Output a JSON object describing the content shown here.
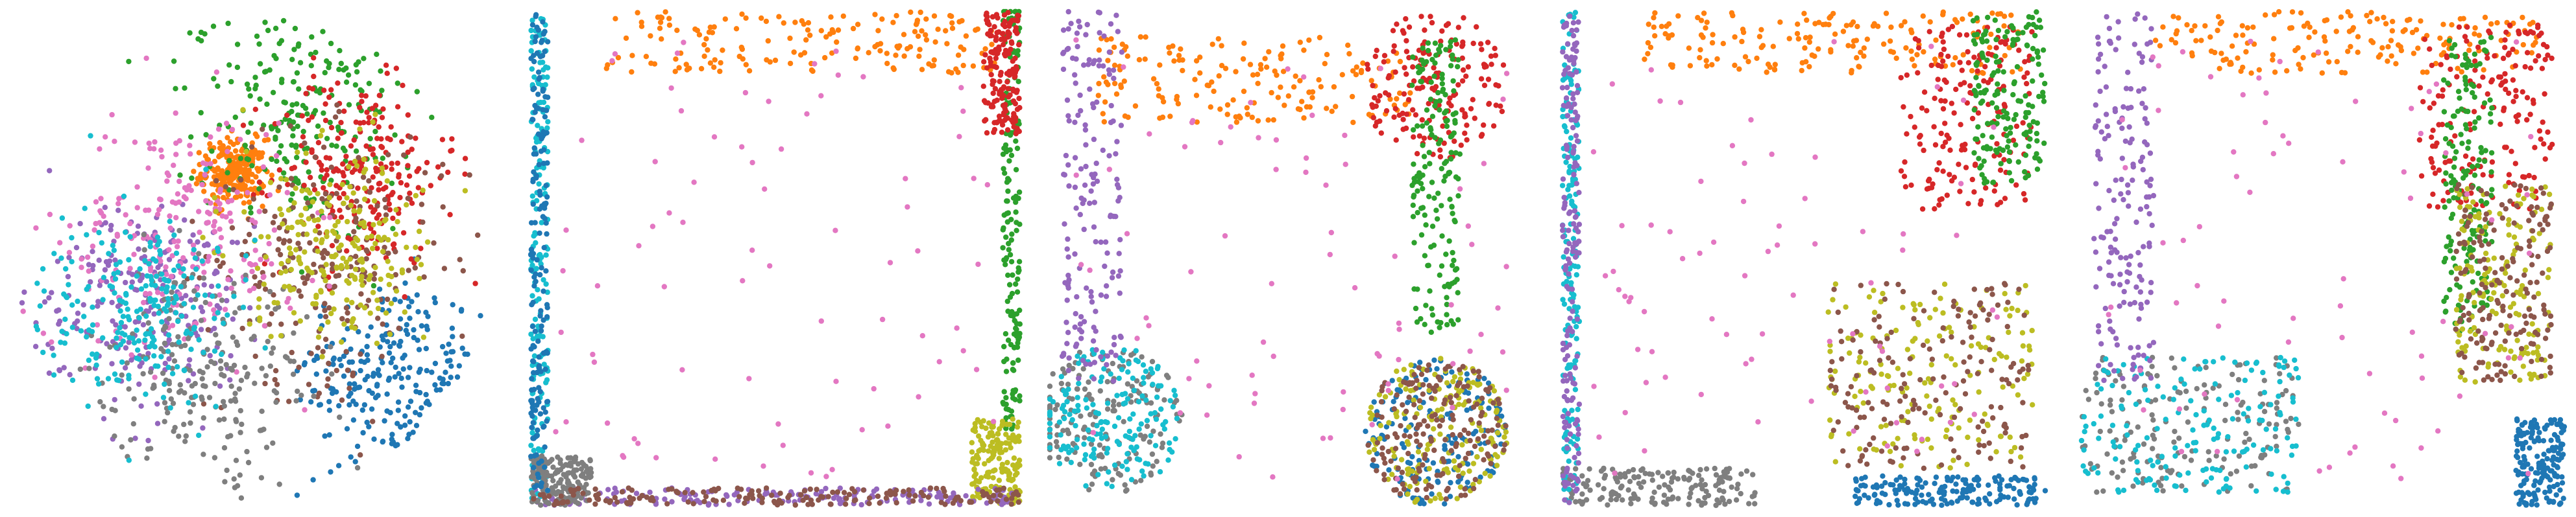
{
  "figure": {
    "description_visible_text": ""
  },
  "palette": {
    "blue": "#1f77b4",
    "orange": "#ff7f0e",
    "green": "#2ca02c",
    "red": "#d62728",
    "purple": "#9467bd",
    "brown": "#8c564b",
    "pink": "#e377c2",
    "gray": "#7f7f7f",
    "olive": "#bcbd22",
    "cyan": "#17becf"
  },
  "chart_data": [
    {
      "type": "scatter",
      "panel": 1,
      "shape": "disk",
      "title": "",
      "xlabel": "",
      "ylabel": "",
      "axes_visible": false,
      "grid": false,
      "legend": "none",
      "xlim": [
        -1,
        1
      ],
      "ylim": [
        -1,
        1
      ],
      "series": [
        {
          "color": "blue",
          "center": [
            0.55,
            -0.45
          ],
          "spread": 0.35
        },
        {
          "color": "orange",
          "center": [
            -0.08,
            0.35
          ],
          "spread": 0.12
        },
        {
          "color": "green",
          "center": [
            0.2,
            0.55
          ],
          "spread": 0.4
        },
        {
          "color": "red",
          "center": [
            0.45,
            0.35
          ],
          "spread": 0.35
        },
        {
          "color": "purple",
          "center": [
            -0.45,
            -0.15
          ],
          "spread": 0.4
        },
        {
          "color": "brown",
          "center": [
            0.3,
            0.0
          ],
          "spread": 0.45
        },
        {
          "color": "pink",
          "center": [
            -0.3,
            0.1
          ],
          "spread": 0.45
        },
        {
          "color": "gray",
          "center": [
            -0.2,
            -0.45
          ],
          "spread": 0.4
        },
        {
          "color": "olive",
          "center": [
            0.35,
            0.05
          ],
          "spread": 0.35
        },
        {
          "color": "cyan",
          "center": [
            -0.45,
            -0.2
          ],
          "spread": 0.35
        }
      ]
    },
    {
      "type": "scatter",
      "panel": 2,
      "shape": "square-edges",
      "title": "",
      "xlabel": "",
      "ylabel": "",
      "axes_visible": false,
      "grid": false,
      "legend": "none",
      "xlim": [
        -1,
        1
      ],
      "ylim": [
        -1,
        1
      ],
      "series": [
        {
          "color": "orange",
          "region": "top-band"
        },
        {
          "color": "green",
          "region": "right-edge-top"
        },
        {
          "color": "red",
          "region": "top-right-corner"
        },
        {
          "color": "olive",
          "region": "bottom-right-corner"
        },
        {
          "color": "purple",
          "region": "bottom-edge"
        },
        {
          "color": "cyan",
          "region": "left-edge"
        },
        {
          "color": "pink",
          "region": "interior-sparse"
        },
        {
          "color": "gray",
          "region": "bottom-left-corner"
        },
        {
          "color": "brown",
          "region": "bottom-edge"
        },
        {
          "color": "blue",
          "region": "left-edge"
        }
      ]
    },
    {
      "type": "scatter",
      "panel": 3,
      "shape": "bone",
      "title": "",
      "xlabel": "",
      "ylabel": "",
      "axes_visible": false,
      "grid": false,
      "legend": "none",
      "xlim": [
        -1,
        1
      ],
      "ylim": [
        -1,
        1
      ],
      "series": [
        {
          "color": "orange",
          "region": "top-bar"
        },
        {
          "color": "red",
          "region": "top-right-knob"
        },
        {
          "color": "green",
          "region": "right-column"
        },
        {
          "color": "blue",
          "region": "bottom-right-knob"
        },
        {
          "color": "olive",
          "region": "bottom-right-knob"
        },
        {
          "color": "brown",
          "region": "bottom-right-knob"
        },
        {
          "color": "gray",
          "region": "bottom-left-knob"
        },
        {
          "color": "cyan",
          "region": "bottom-left-knob"
        },
        {
          "color": "purple",
          "region": "left-column"
        },
        {
          "color": "pink",
          "region": "interior-sparse"
        }
      ]
    },
    {
      "type": "scatter",
      "panel": 4,
      "shape": "rounded-square",
      "title": "",
      "xlabel": "",
      "ylabel": "",
      "axes_visible": false,
      "grid": false,
      "legend": "none",
      "xlim": [
        -1,
        1
      ],
      "ylim": [
        -1,
        1
      ],
      "series": [
        {
          "color": "orange",
          "region": "top-band"
        },
        {
          "color": "red",
          "region": "top-right"
        },
        {
          "color": "green",
          "region": "top-right-edge"
        },
        {
          "color": "olive",
          "region": "bottom-right-blob"
        },
        {
          "color": "brown",
          "region": "bottom-right-blob"
        },
        {
          "color": "blue",
          "region": "bottom-right-edge"
        },
        {
          "color": "gray",
          "region": "bottom-left-edge"
        },
        {
          "color": "cyan",
          "region": "left-edge"
        },
        {
          "color": "purple",
          "region": "left-edge"
        },
        {
          "color": "pink",
          "region": "interior-sparse"
        }
      ]
    },
    {
      "type": "scatter",
      "panel": 5,
      "shape": "square-fuzzy",
      "title": "",
      "xlabel": "",
      "ylabel": "",
      "axes_visible": false,
      "grid": false,
      "legend": "none",
      "xlim": [
        -1,
        1
      ],
      "ylim": [
        -1,
        1
      ],
      "series": [
        {
          "color": "orange",
          "region": "top-band"
        },
        {
          "color": "red",
          "region": "top-right"
        },
        {
          "color": "green",
          "region": "right-column"
        },
        {
          "color": "blue",
          "region": "bottom-right-corner"
        },
        {
          "color": "olive",
          "region": "right-middle"
        },
        {
          "color": "brown",
          "region": "right-middle"
        },
        {
          "color": "gray",
          "region": "bottom-left"
        },
        {
          "color": "cyan",
          "region": "bottom-left"
        },
        {
          "color": "purple",
          "region": "left-column"
        },
        {
          "color": "pink",
          "region": "interior-sparse"
        }
      ]
    }
  ]
}
